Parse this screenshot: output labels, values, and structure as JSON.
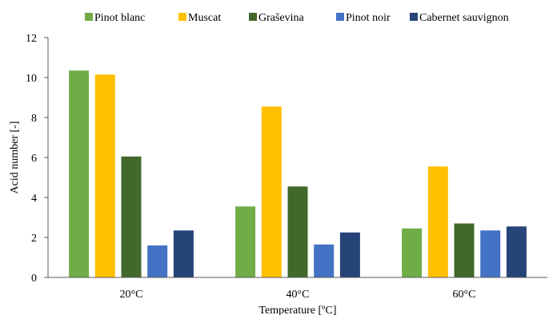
{
  "chart_data": {
    "type": "bar",
    "title": "",
    "xlabel": "Temperature [ºC]",
    "ylabel": "Acid number [-]",
    "ylim": [
      0,
      12
    ],
    "yticks": [
      0,
      2,
      4,
      6,
      8,
      10,
      12
    ],
    "grid": false,
    "legend_position": "top",
    "categories": [
      "20°C",
      "40°C",
      "60°C"
    ],
    "series": [
      {
        "name": "Pinot blanc",
        "color": "#70AD47",
        "values": [
          10.35,
          3.55,
          2.45
        ]
      },
      {
        "name": "Muscat",
        "color": "#FFC000",
        "values": [
          10.15,
          8.55,
          5.55
        ]
      },
      {
        "name": "Graševina",
        "color": "#43682B",
        "values": [
          6.05,
          4.55,
          2.7
        ]
      },
      {
        "name": "Pinot noir",
        "color": "#4472C4",
        "values": [
          1.6,
          1.65,
          2.35
        ]
      },
      {
        "name": "Cabernet sauvignon",
        "color": "#264478",
        "values": [
          2.35,
          2.25,
          2.55
        ]
      }
    ]
  }
}
